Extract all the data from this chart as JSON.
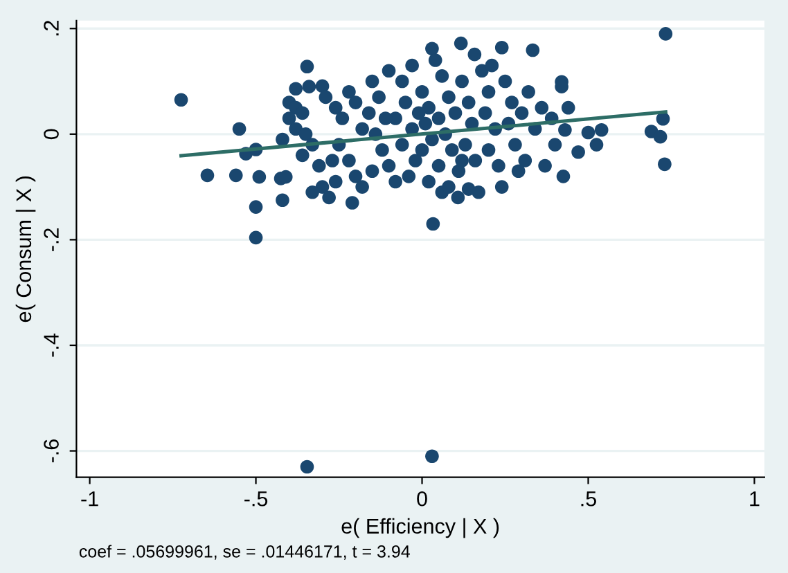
{
  "chart_data": {
    "type": "scatter",
    "xlabel": "e( Efficiency | X )",
    "ylabel": "e( Consum | X )",
    "annotations": [
      "coef = .05699961, se = .01446171, t = 3.94"
    ],
    "xlim": [
      -1.04,
      1.03
    ],
    "ylim": [
      -0.65,
      0.215
    ],
    "xticks": [
      {
        "value": -1,
        "label": "-1"
      },
      {
        "value": -0.5,
        "label": "-.5"
      },
      {
        "value": 0,
        "label": "0"
      },
      {
        "value": 0.5,
        "label": ".5"
      },
      {
        "value": 1,
        "label": "1"
      }
    ],
    "yticks": [
      {
        "value": -0.6,
        "label": "-.6"
      },
      {
        "value": -0.4,
        "label": "-.4"
      },
      {
        "value": -0.2,
        "label": "-.2"
      },
      {
        "value": 0,
        "label": "0"
      },
      {
        "value": 0.2,
        "label": ".2"
      }
    ],
    "grid": "y",
    "series": [
      {
        "marker": "circle",
        "color": "#1a476f",
        "x": [
          -0.725,
          -0.646,
          -0.56,
          -0.55,
          -0.53,
          -0.5,
          -0.49,
          -0.5,
          -0.5,
          -0.42,
          -0.425,
          -0.41,
          -0.346,
          -0.38,
          -0.3,
          -0.346,
          0.03,
          0.733,
          0.725,
          0.69,
          0.717,
          0.73,
          0.54,
          0.5,
          0.525,
          0.47,
          0.425,
          0.033,
          0.03,
          0.117,
          0.158,
          0.24,
          0.333,
          0.108,
          0.14,
          0.06,
          0.43,
          0.42,
          -0.4,
          -0.38,
          -0.36,
          -0.4,
          -0.38,
          -0.35,
          -0.33,
          -0.36,
          -0.31,
          -0.3,
          -0.28,
          -0.26,
          -0.33,
          -0.29,
          -0.34,
          -0.26,
          -0.24,
          -0.22,
          -0.2,
          -0.25,
          -0.22,
          -0.2,
          -0.18,
          -0.21,
          -0.15,
          -0.13,
          -0.16,
          -0.14,
          -0.12,
          -0.1,
          -0.15,
          -0.08,
          -0.1,
          -0.06,
          -0.05,
          -0.08,
          -0.03,
          -0.06,
          -0.02,
          -0.04,
          0.0,
          0.02,
          0.01,
          0.03,
          0.0,
          0.05,
          0.02,
          0.06,
          0.08,
          0.1,
          0.07,
          0.09,
          0.11,
          0.08,
          0.12,
          0.14,
          0.15,
          0.13,
          0.16,
          0.18,
          0.2,
          0.19,
          0.22,
          0.2,
          0.23,
          0.25,
          0.27,
          0.26,
          0.28,
          0.3,
          0.32,
          0.31,
          0.34,
          0.36,
          0.29,
          0.24,
          0.17,
          -0.11,
          -0.18,
          -0.27,
          -0.42,
          0.04,
          -0.03,
          0.21,
          0.05,
          -0.01,
          0.12,
          0.39,
          0.4,
          0.37,
          0.44,
          0.42
        ],
        "values": [
          0.065,
          -0.078,
          -0.078,
          0.01,
          -0.037,
          -0.029,
          -0.081,
          -0.138,
          -0.196,
          -0.125,
          -0.084,
          -0.081,
          0.128,
          0.086,
          0.091,
          -0.63,
          -0.61,
          0.19,
          0.029,
          0.005,
          -0.005,
          -0.057,
          0.008,
          0.003,
          -0.02,
          -0.034,
          -0.08,
          -0.17,
          0.162,
          0.172,
          0.151,
          0.164,
          0.159,
          -0.12,
          -0.104,
          -0.11,
          0.008,
          0.099,
          0.06,
          0.05,
          0.04,
          0.03,
          0.01,
          0.0,
          -0.02,
          -0.04,
          -0.06,
          -0.1,
          -0.12,
          -0.09,
          -0.11,
          0.07,
          0.09,
          0.05,
          0.03,
          0.08,
          0.06,
          -0.02,
          -0.05,
          -0.08,
          -0.1,
          -0.13,
          0.1,
          0.07,
          0.04,
          0.0,
          -0.03,
          -0.06,
          -0.07,
          -0.09,
          0.12,
          0.1,
          0.06,
          0.03,
          0.01,
          -0.02,
          -0.05,
          -0.08,
          0.08,
          0.05,
          0.02,
          -0.01,
          -0.03,
          -0.06,
          -0.09,
          0.11,
          0.07,
          0.04,
          0.0,
          -0.03,
          -0.07,
          -0.1,
          0.1,
          0.06,
          0.02,
          -0.02,
          -0.05,
          0.12,
          0.08,
          0.04,
          0.01,
          -0.03,
          -0.06,
          0.1,
          0.06,
          0.02,
          -0.02,
          0.04,
          0.08,
          -0.05,
          0.01,
          0.05,
          -0.07,
          -0.1,
          -0.11,
          0.03,
          0.01,
          -0.05,
          -0.01,
          0.14,
          0.13,
          0.13,
          0.03,
          0.04,
          -0.05,
          0.03,
          -0.02,
          -0.06,
          0.05,
          0.09
        ]
      },
      {
        "type": "line",
        "color": "#2d6d66",
        "x": [
          -0.725,
          0.733
        ],
        "values": [
          -0.041,
          0.042
        ]
      }
    ]
  }
}
